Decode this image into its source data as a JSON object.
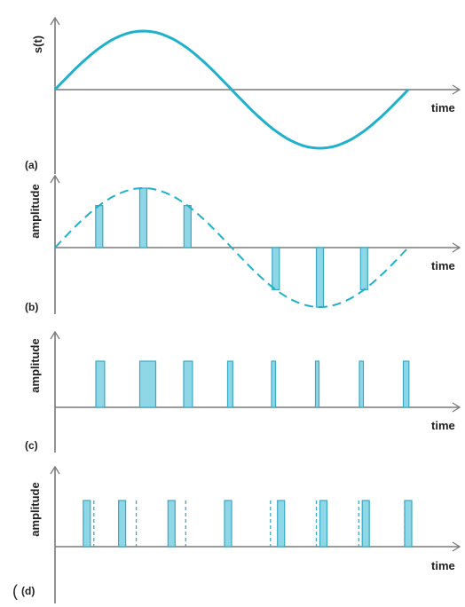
{
  "colors": {
    "signal": "#1fb0cc",
    "pulse_fill": "#8fd6e6",
    "pulse_stroke": "#3aa9c4",
    "axis": "#7a7a7a",
    "text": "#222222"
  },
  "panels": [
    {
      "id": "a",
      "label": "(a)",
      "ylabel": "s(t)",
      "xlabel": "time",
      "content": "sine wave"
    },
    {
      "id": "b",
      "label": "(b)",
      "ylabel": "amplitude",
      "xlabel": "time",
      "content": "pulse amplitude samples with dashed sine envelope"
    },
    {
      "id": "c",
      "label": "(c)",
      "ylabel": "amplitude",
      "xlabel": "time",
      "content": "pulse width modulation"
    },
    {
      "id": "d",
      "label": "(d)",
      "ylabel": "amplitude",
      "xlabel": "time",
      "content": "pulse position modulation"
    }
  ],
  "extra_glyph": "(",
  "sampling": {
    "b_phases": [
      0.125,
      0.25,
      0.375,
      0.625,
      0.75,
      0.875
    ],
    "c_widths_rel": [
      0.55,
      1.0,
      0.55,
      0.32,
      0.25,
      0.2,
      0.25,
      0.35
    ],
    "d_pulse_phases": [
      0.09,
      0.19,
      0.33,
      0.49,
      0.64,
      0.76,
      0.88,
      1.0
    ],
    "d_ref_phases": [
      0.11,
      0.23,
      0.37,
      0.49,
      0.61,
      0.74,
      0.86,
      0.99
    ]
  }
}
